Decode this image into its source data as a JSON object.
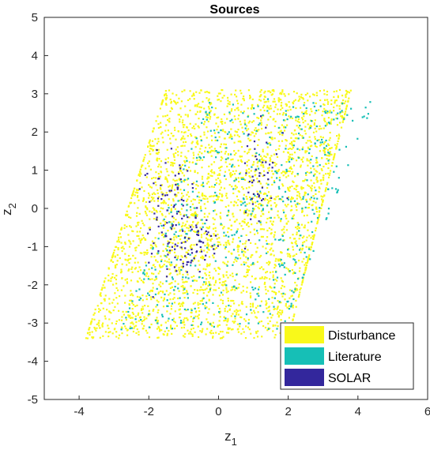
{
  "chart_data": {
    "type": "scatter",
    "title": "Sources",
    "xlabel": {
      "main": "z",
      "sub": "1"
    },
    "ylabel": {
      "main": "z",
      "sub": "2"
    },
    "xlim": [
      -5,
      6
    ],
    "ylim": [
      -5,
      5
    ],
    "xticks": [
      -4,
      -2,
      0,
      2,
      4,
      6
    ],
    "yticks": [
      -5,
      -4,
      -3,
      -2,
      -1,
      0,
      1,
      2,
      3,
      4,
      5
    ],
    "grid": false,
    "legend_position": "bottom-right",
    "series": [
      {
        "name": "Disturbance",
        "color": "#f9f91a",
        "approx_points": 3000,
        "region": "parallelogram",
        "bottom_edge": [
          [
            -3.8,
            -3.4
          ],
          [
            2.0,
            -3.4
          ]
        ],
        "top_edge": [
          [
            -1.5,
            3.1
          ],
          [
            3.8,
            3.1
          ]
        ],
        "seed": 11
      },
      {
        "name": "Literature",
        "color": "#16bfb6",
        "approx_points": 500,
        "region": "parallelogram",
        "bottom_edge": [
          [
            -2.8,
            -3.2
          ],
          [
            1.8,
            -3.2
          ]
        ],
        "top_edge": [
          [
            -0.2,
            2.9
          ],
          [
            4.5,
            2.9
          ]
        ],
        "seed": 29
      },
      {
        "name": "SOLAR",
        "color": "#33279c",
        "approx_points": 180,
        "clusters": [
          {
            "center": [
              -1.0,
              -0.9
            ],
            "spread": [
              0.55,
              0.45
            ],
            "n": 95
          },
          {
            "center": [
              -1.4,
              0.5
            ],
            "spread": [
              0.45,
              0.35
            ],
            "n": 40
          },
          {
            "center": [
              1.2,
              0.9
            ],
            "spread": [
              0.25,
              0.7
            ],
            "n": 45
          }
        ],
        "seed": 47
      }
    ]
  }
}
